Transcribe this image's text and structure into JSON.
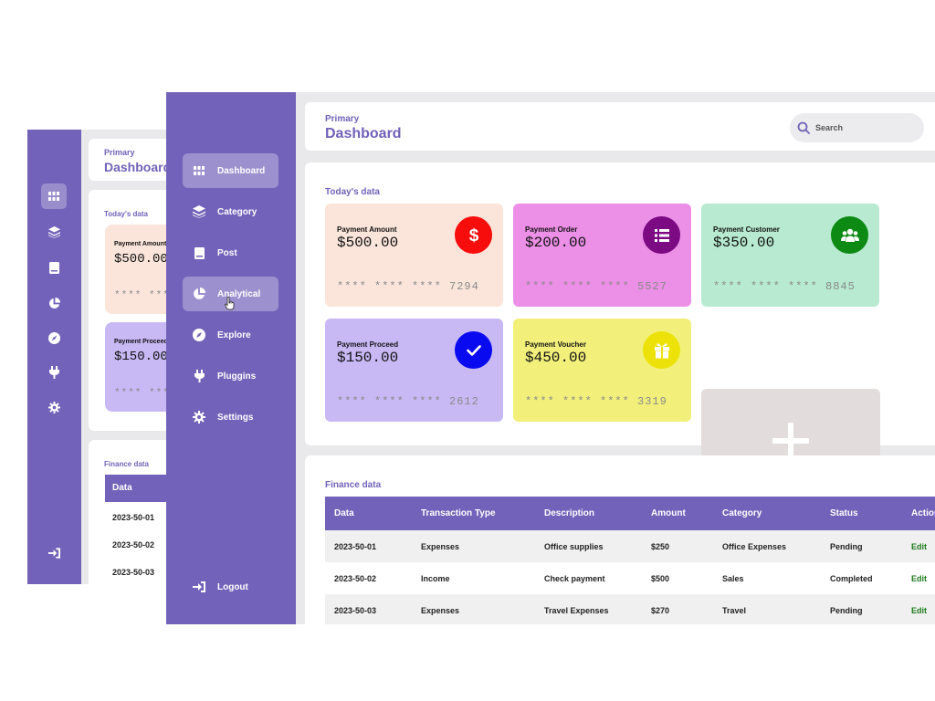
{
  "back_window": {
    "breadcrumb": "Primary",
    "title": "Dashboard",
    "today_title": "Today's data",
    "finance_title": "Finance data",
    "cards": [
      {
        "label": "Payment Amount",
        "amount": "$500.00",
        "mask": "**** ***",
        "color": "#fbe5da"
      },
      {
        "label": "Payment Proceed",
        "amount": "$150.00",
        "mask": "**** ***",
        "color": "#c8b9f5"
      }
    ],
    "table_header": "Data",
    "rows": [
      "2023-50-01",
      "2023-50-02",
      "2023-50-03"
    ],
    "rail_icons": [
      "grid-icon",
      "layers-icon",
      "book-icon",
      "pie-chart-icon",
      "compass-icon",
      "plug-icon",
      "gear-icon",
      "logout-icon"
    ]
  },
  "sidebar": {
    "items": [
      {
        "label": "Dashboard",
        "icon": "grid-icon",
        "active": true
      },
      {
        "label": "Category",
        "icon": "layers-icon",
        "active": false
      },
      {
        "label": "Post",
        "icon": "book-icon",
        "active": false
      },
      {
        "label": "Analytical",
        "icon": "pie-chart-icon",
        "active": true
      },
      {
        "label": "Explore",
        "icon": "compass-icon",
        "active": false
      },
      {
        "label": "Pluggins",
        "icon": "plug-icon",
        "active": false
      },
      {
        "label": "Settings",
        "icon": "gear-icon",
        "active": false
      }
    ],
    "logout": "Logout"
  },
  "header": {
    "breadcrumb": "Primary",
    "title": "Dashboard",
    "search_placeholder": "Search"
  },
  "today": {
    "title": "Today's data",
    "cards": [
      {
        "label": "Payment Amount",
        "amount": "$500.00",
        "mask": "**** **** **** 7294",
        "color": "#fbe5da",
        "badge_color": "#f80d0d",
        "icon": "dollar-icon"
      },
      {
        "label": "Payment Order",
        "amount": "$200.00",
        "mask": "**** **** **** 5527",
        "color": "#ec8fe7",
        "badge_color": "#7c0a83",
        "icon": "list-icon"
      },
      {
        "label": "Payment Customer",
        "amount": "$350.00",
        "mask": "**** **** **** 8845",
        "color": "#b7ead0",
        "badge_color": "#0c8a14",
        "icon": "users-icon"
      },
      {
        "label": "Payment Proceed",
        "amount": "$150.00",
        "mask": "**** **** **** 2612",
        "color": "#c8b9f5",
        "badge_color": "#0a0af0",
        "icon": "check-icon"
      },
      {
        "label": "Payment Voucher",
        "amount": "$450.00",
        "mask": "**** **** **** 3319",
        "color": "#f2f07a",
        "badge_color": "#ece20a",
        "icon": "gift-icon"
      }
    ]
  },
  "finance": {
    "title": "Finance data",
    "columns": [
      "Data",
      "Transaction Type",
      "Description",
      "Amount",
      "Category",
      "Status",
      "Action"
    ],
    "rows": [
      [
        "2023-50-01",
        "Expenses",
        "Office supplies",
        "$250",
        "Office Expenses",
        "Pending",
        "Edit"
      ],
      [
        "2023-50-02",
        "Income",
        "Check payment",
        "$500",
        "Sales",
        "Completed",
        "Edit"
      ],
      [
        "2023-50-03",
        "Expenses",
        "Travel Expenses",
        "$270",
        "Travel",
        "Pending",
        "Edit"
      ]
    ]
  },
  "colors": {
    "accent": "#7262b9",
    "edit": "#1a7a1a"
  }
}
